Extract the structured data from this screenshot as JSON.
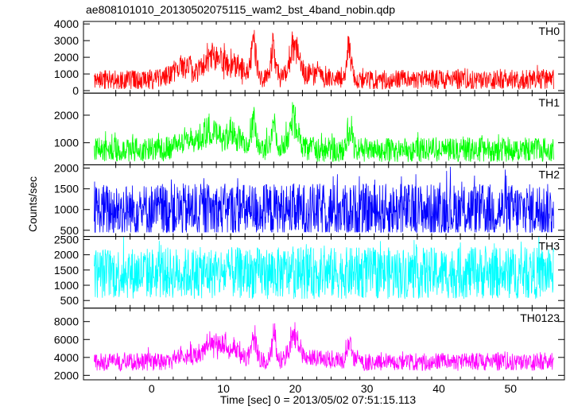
{
  "chart_data": {
    "type": "line",
    "title": "ae808101010_20130502075115_wam2_bst_4band_nobin.qdp",
    "xlabel": "Time [sec] 0 = 2013/05/02 07:51:15.113",
    "ylabel": "Counts/sec",
    "xlim": [
      -9.5,
      57.5
    ],
    "xticks": [
      0,
      10,
      20,
      30,
      40,
      50
    ],
    "x_start": -8,
    "x_end": 56,
    "grid": false,
    "legend": "none",
    "panels": [
      {
        "name": "TH0",
        "color": "#ff0000",
        "ylim": [
          -150,
          4150
        ],
        "yticks": [
          0,
          1000,
          2000,
          3000,
          4000
        ],
        "tick_labels": [
          "0",
          "1000",
          "2000",
          "3000",
          "4000"
        ],
        "baseline": 650,
        "noise": 600,
        "min": 100,
        "bursts": [
          {
            "x": 4.5,
            "w": 1.5,
            "h": 1000
          },
          {
            "x": 8,
            "w": 0.8,
            "h": 1400
          },
          {
            "x": 10.5,
            "w": 2.0,
            "h": 1500
          },
          {
            "x": 14.2,
            "w": 0.35,
            "h": 2800
          },
          {
            "x": 17.0,
            "w": 0.35,
            "h": 2800
          },
          {
            "x": 19.8,
            "w": 0.6,
            "h": 3000
          },
          {
            "x": 27.5,
            "w": 0.35,
            "h": 2500
          },
          {
            "x": 22,
            "w": 2.5,
            "h": 500
          }
        ]
      },
      {
        "name": "TH1",
        "color": "#00ff00",
        "ylim": [
          200,
          2800
        ],
        "yticks": [
          1000,
          2000
        ],
        "tick_labels": [
          "1000",
          "2000"
        ],
        "baseline": 750,
        "noise": 450,
        "min": 250,
        "bursts": [
          {
            "x": 5,
            "w": 1.5,
            "h": 400
          },
          {
            "x": 8,
            "w": 0.8,
            "h": 600
          },
          {
            "x": 10.5,
            "w": 2.0,
            "h": 800
          },
          {
            "x": 14.2,
            "w": 0.35,
            "h": 1300
          },
          {
            "x": 17.0,
            "w": 0.35,
            "h": 1400
          },
          {
            "x": 19.8,
            "w": 0.6,
            "h": 1500
          },
          {
            "x": 27.5,
            "w": 0.35,
            "h": 1300
          }
        ]
      },
      {
        "name": "TH2",
        "color": "#0000ff",
        "ylim": [
          350,
          2080
        ],
        "yticks": [
          500,
          1000,
          1500,
          2000
        ],
        "tick_labels": [
          "500",
          "1000",
          "1500",
          "2000"
        ],
        "baseline": 980,
        "noise": 650,
        "min": 450,
        "bursts": []
      },
      {
        "name": "TH3",
        "color": "#00ffff",
        "ylim": [
          250,
          2600
        ],
        "yticks": [
          500,
          1000,
          1500,
          2000,
          2500
        ],
        "tick_labels": [
          "500",
          "1000",
          "1500",
          "2000",
          "2500"
        ],
        "baseline": 1400,
        "noise": 850,
        "min": 400,
        "bursts": []
      },
      {
        "name": "TH0123",
        "color": "#ff00ff",
        "ylim": [
          1500,
          9500
        ],
        "yticks": [
          2000,
          4000,
          6000,
          8000
        ],
        "tick_labels": [
          "2000",
          "4000",
          "6000",
          "8000"
        ],
        "baseline": 3500,
        "noise": 1000,
        "min": 2200,
        "bursts": [
          {
            "x": 5,
            "w": 1.5,
            "h": 1000
          },
          {
            "x": 8,
            "w": 0.8,
            "h": 1600
          },
          {
            "x": 10.5,
            "w": 2.0,
            "h": 2500
          },
          {
            "x": 14.2,
            "w": 0.35,
            "h": 3500
          },
          {
            "x": 17.0,
            "w": 0.35,
            "h": 3800
          },
          {
            "x": 19.8,
            "w": 0.6,
            "h": 4500
          },
          {
            "x": 27.5,
            "w": 0.35,
            "h": 3500
          },
          {
            "x": 22,
            "w": 2.5,
            "h": 800
          }
        ]
      }
    ]
  }
}
